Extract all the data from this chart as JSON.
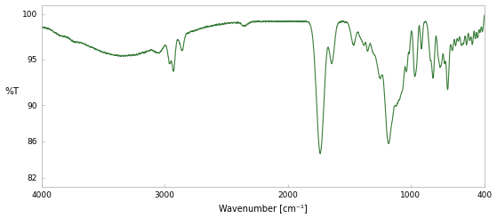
{
  "title": "",
  "xlabel": "Wavenumber [cm⁻¹]",
  "ylabel": "%T",
  "xlim": [
    4000,
    400
  ],
  "ylim": [
    81,
    101
  ],
  "yticks": [
    82,
    86,
    90,
    95,
    100
  ],
  "xticks": [
    4000,
    3000,
    2000,
    1000,
    400
  ],
  "line_color": "#3a7d3a",
  "background_color": "#ffffff",
  "linewidth": 0.8,
  "figsize": [
    5.59,
    2.45
  ],
  "dpi": 100
}
